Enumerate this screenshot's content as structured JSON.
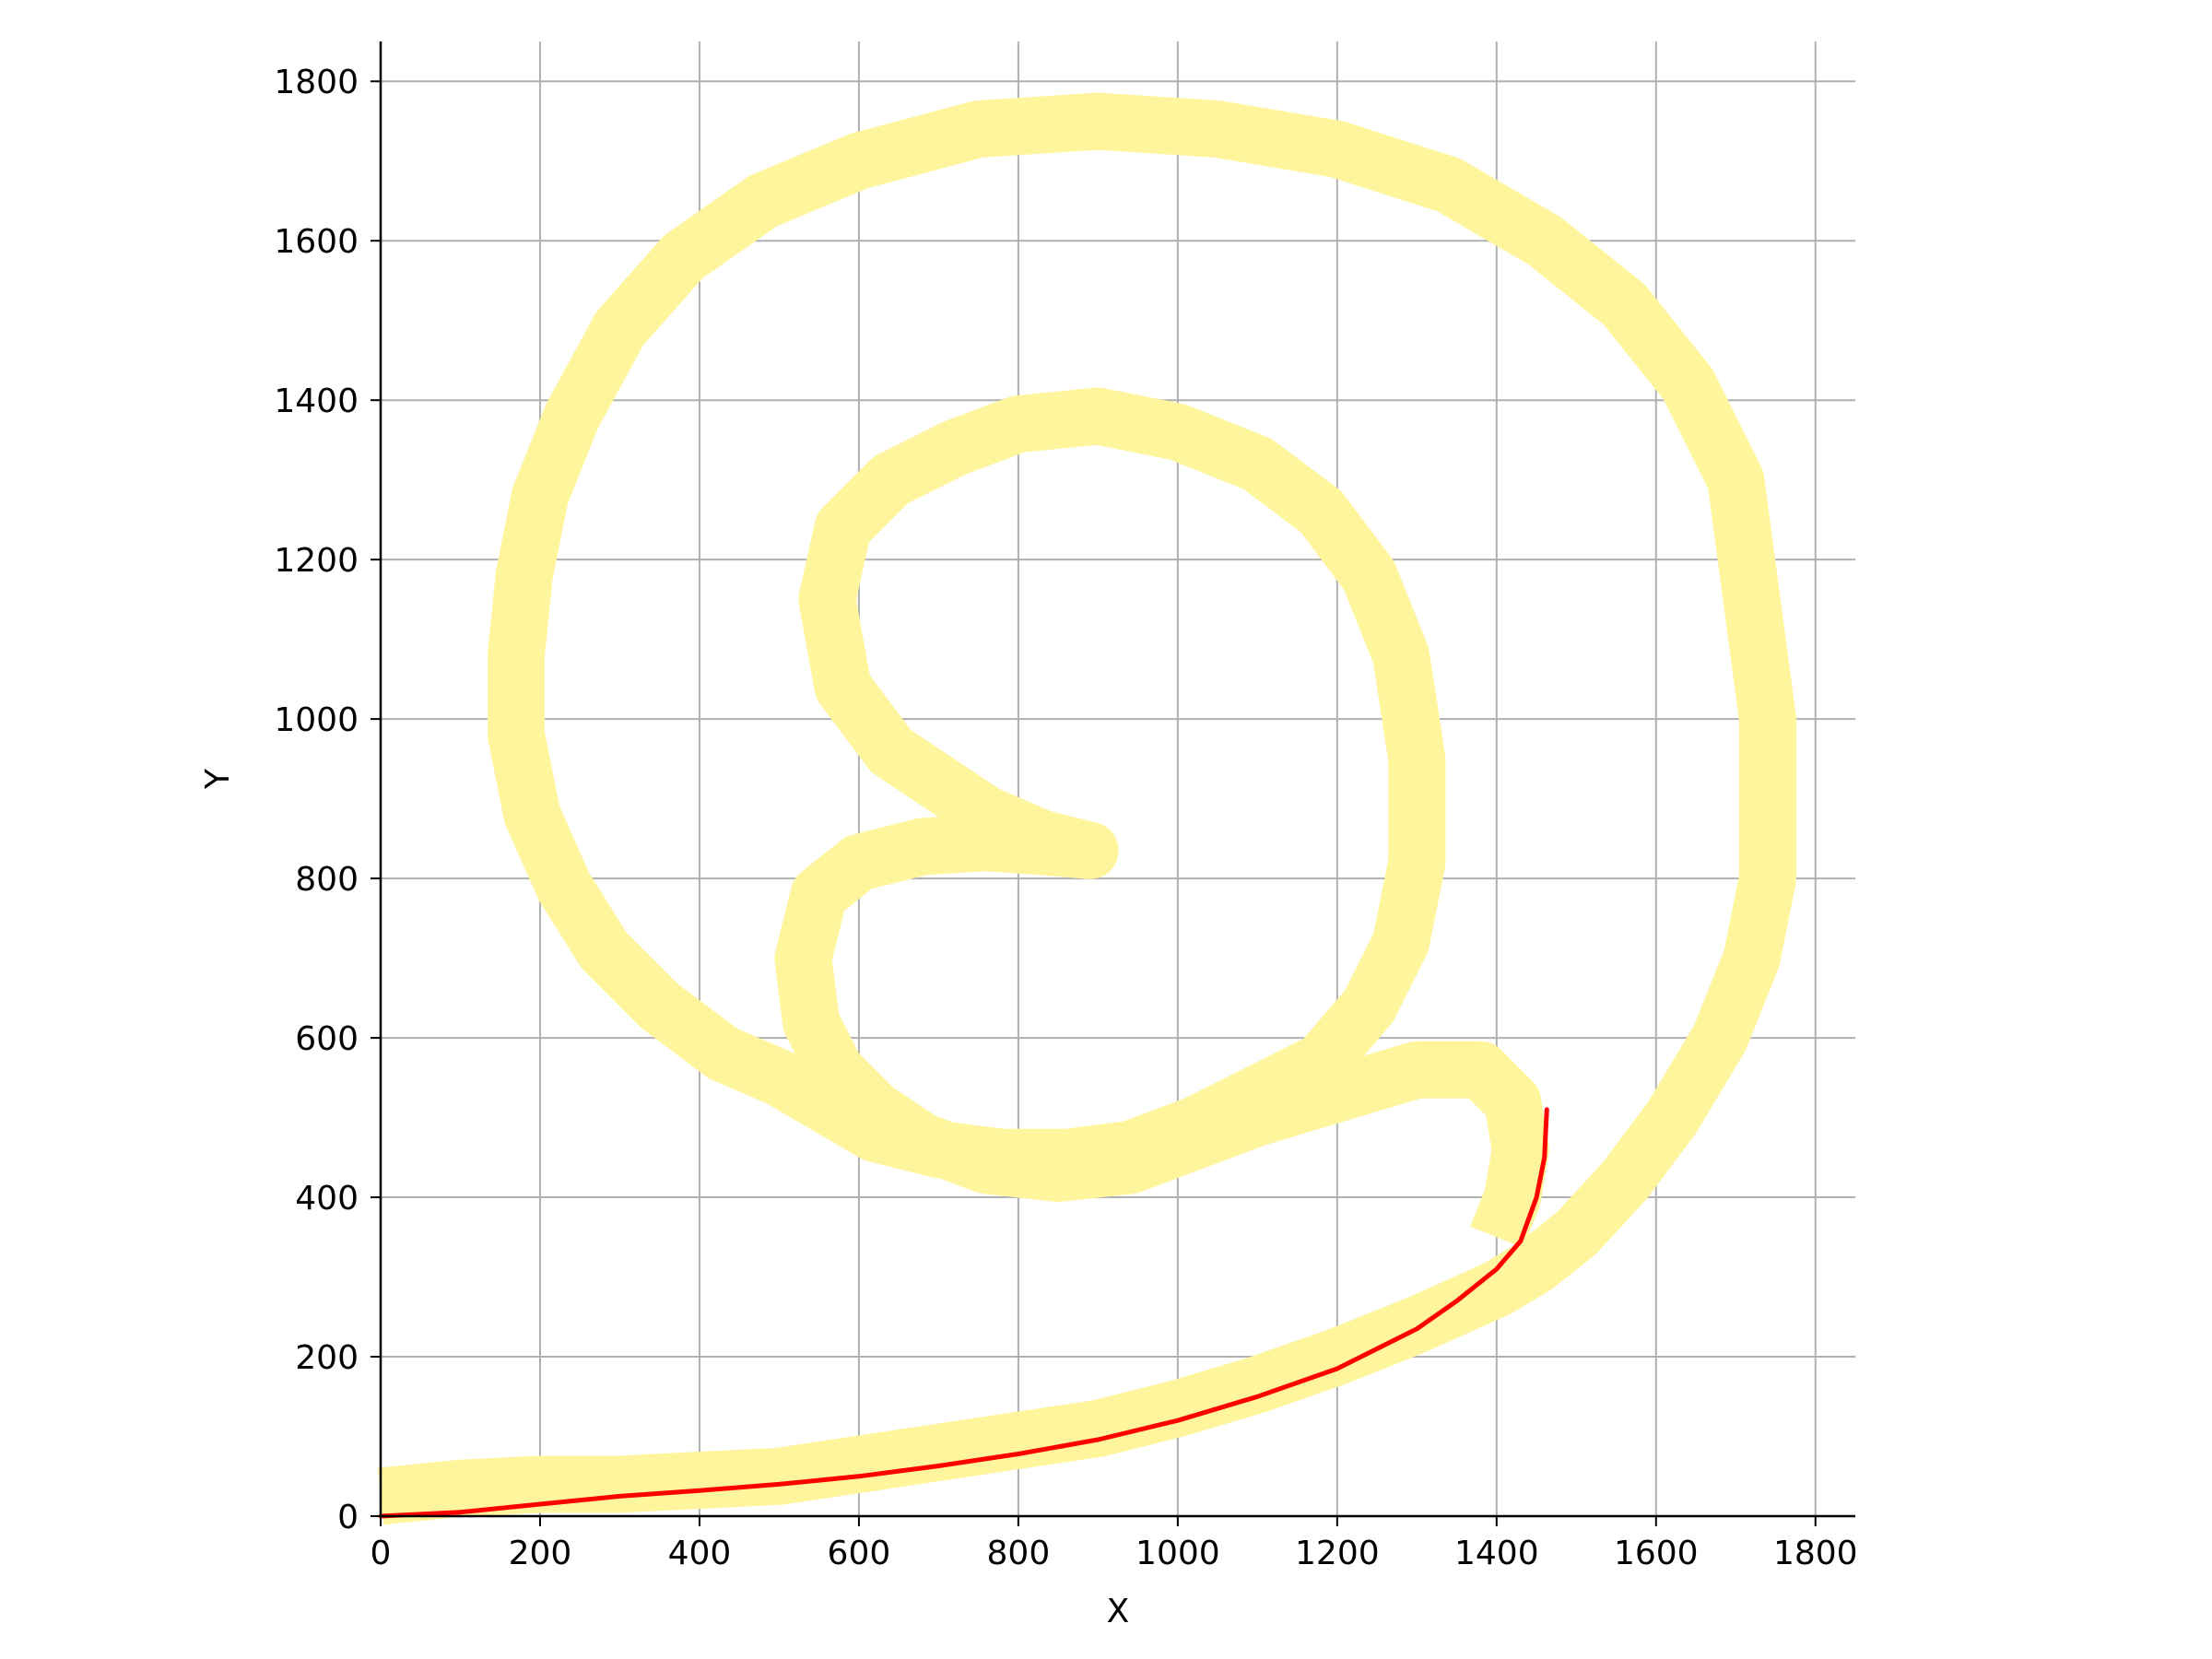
{
  "chart_data": {
    "type": "line",
    "xlabel": "X",
    "ylabel": "Y",
    "xlim": [
      0,
      1850
    ],
    "ylim": [
      0,
      1850
    ],
    "xticks": [
      "0",
      "200",
      "400",
      "600",
      "800",
      "1000",
      "1200",
      "1400",
      "1600",
      "1800"
    ],
    "yticks": [
      "0",
      "200",
      "400",
      "600",
      "800",
      "1000",
      "1200",
      "1400",
      "1600",
      "1800"
    ],
    "xtick_values": [
      0,
      200,
      400,
      600,
      800,
      1000,
      1200,
      1400,
      1600,
      1800
    ],
    "ytick_values": [
      0,
      200,
      400,
      600,
      800,
      1000,
      1200,
      1400,
      1600,
      1800
    ],
    "grid": true,
    "legend": "none",
    "series": [
      {
        "color": "#fff59d",
        "x": [
          0,
          100,
          200,
          300,
          400,
          500,
          600,
          700,
          800,
          900,
          1000,
          1100,
          1200,
          1300,
          1400,
          1450,
          1500,
          1560,
          1620,
          1680,
          1720,
          1740,
          1740,
          1720,
          1700,
          1640,
          1560,
          1460,
          1340,
          1200,
          1050,
          900,
          750,
          600,
          480,
          380,
          300,
          240,
          200,
          180,
          170,
          170,
          190,
          230,
          280,
          350,
          430,
          500,
          560,
          620,
          700,
          780,
          860,
          940,
          1020,
          1100,
          1180,
          1240,
          1280,
          1300,
          1300,
          1280,
          1240,
          1180,
          1100,
          1000,
          900,
          800,
          720,
          640,
          580,
          560,
          580,
          640,
          700,
          760,
          830,
          890,
          830,
          760,
          680,
          600,
          550,
          530,
          540,
          570,
          620,
          680,
          760,
          850,
          940,
          1020,
          1100,
          1200,
          1300,
          1380,
          1420,
          1430,
          1420,
          1400
        ],
        "y": [
          25,
          35,
          40,
          40,
          45,
          50,
          65,
          80,
          95,
          110,
          135,
          165,
          200,
          240,
          285,
          315,
          355,
          420,
          500,
          600,
          700,
          800,
          1000,
          1150,
          1300,
          1420,
          1520,
          1600,
          1670,
          1715,
          1740,
          1750,
          1740,
          1700,
          1650,
          1580,
          1490,
          1380,
          1280,
          1180,
          1080,
          980,
          880,
          790,
          710,
          640,
          580,
          550,
          515,
          480,
          460,
          450,
          450,
          460,
          490,
          530,
          570,
          640,
          720,
          820,
          950,
          1080,
          1180,
          1260,
          1320,
          1360,
          1380,
          1370,
          1340,
          1300,
          1240,
          1150,
          1040,
          960,
          920,
          880,
          850,
          835,
          840,
          845,
          840,
          820,
          780,
          700,
          620,
          560,
          510,
          470,
          440,
          430,
          440,
          470,
          500,
          530,
          560,
          560,
          520,
          460,
          400,
          350
        ]
      },
      {
        "color": "#ff0000",
        "x": [
          0,
          100,
          200,
          300,
          400,
          500,
          600,
          700,
          800,
          900,
          1000,
          1100,
          1200,
          1300,
          1350,
          1400,
          1430,
          1450,
          1460,
          1462,
          1463
        ],
        "y": [
          0,
          5,
          15,
          25,
          32,
          40,
          50,
          63,
          78,
          96,
          120,
          150,
          185,
          235,
          270,
          310,
          345,
          400,
          450,
          490,
          510
        ]
      }
    ]
  }
}
